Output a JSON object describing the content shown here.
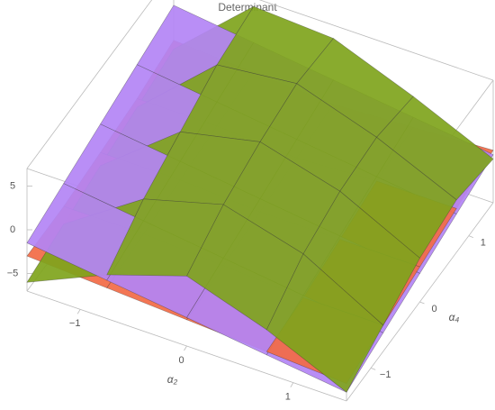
{
  "chart_data": {
    "type": "surface3d",
    "title": "Determinant",
    "x_label": "α₂",
    "y_label": "α₄",
    "x": [
      -1.5,
      -0.75,
      0,
      0.75,
      1.5
    ],
    "y": [
      -1.5,
      -0.75,
      0,
      0.75,
      1.5
    ],
    "xlim": [
      -1.5,
      1.5
    ],
    "ylim": [
      -1.5,
      1.5
    ],
    "zlim": [
      -7,
      7
    ],
    "xticks": [
      {
        "value": -1,
        "label": "−1"
      },
      0,
      1
    ],
    "yticks": [
      {
        "value": -1,
        "label": "−1"
      },
      0,
      1
    ],
    "zticks": [
      {
        "value": -5,
        "label": "−5"
      },
      0,
      5
    ],
    "series": [
      {
        "color": "#7fa41c",
        "values": [
          [
            -6,
            -5,
            -4,
            -3,
            -2
          ],
          [
            -2,
            1,
            3,
            5,
            6
          ],
          [
            1,
            3.5,
            5,
            6,
            5.5
          ],
          [
            -2,
            1,
            2.5,
            3,
            2
          ],
          [
            -6,
            -4,
            -2,
            -1,
            -2
          ]
        ]
      },
      {
        "color": "#f26a45",
        "values": [
          [
            -3,
            -3,
            -2.5,
            -2,
            -1
          ],
          [
            -3.5,
            -3,
            -2.5,
            -2,
            -1.5
          ],
          [
            -4,
            -3.5,
            -3,
            -2.5,
            -2
          ],
          [
            -4.5,
            -4,
            -3,
            -2,
            -1.5
          ],
          [
            -5,
            -4,
            -3,
            -2,
            -1
          ]
        ]
      },
      {
        "color": "#b384f5",
        "values": [
          [
            -1.5,
            -0.375,
            0.75,
            1.875,
            3
          ],
          [
            -2.625,
            -1.5,
            -0.375,
            0.75,
            1.875
          ],
          [
            -3.75,
            -2.625,
            -1.5,
            -0.375,
            0.75
          ],
          [
            -4.875,
            -3.75,
            -2.625,
            -1.5,
            -0.375
          ],
          [
            -6,
            -4.875,
            -3.75,
            -2.625,
            -1.5
          ]
        ]
      }
    ]
  }
}
